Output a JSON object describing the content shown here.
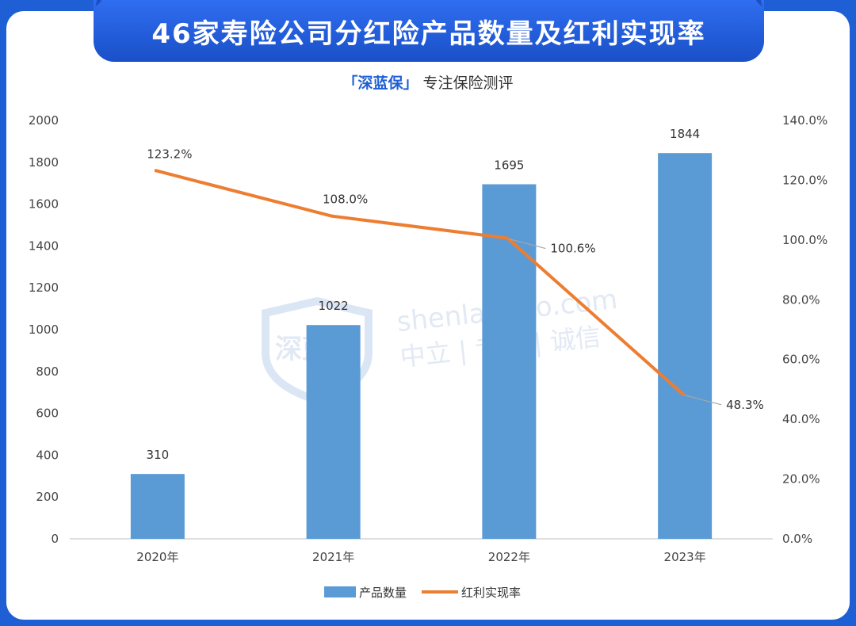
{
  "header": {
    "title": "46家寿险公司分红险产品数量及红利实现率",
    "subtitle_brand": "「深蓝保」",
    "subtitle_rest": "专注保险测评"
  },
  "watermark": {
    "line1": "shenlanbao.com",
    "line2": "中立 | 专业 | 诚信",
    "logo_text": "深蓝保"
  },
  "colors": {
    "bar": "#5b9bd5",
    "line": "#ed7d31",
    "header": "#1f5fd6"
  },
  "chart_data": {
    "type": "bar",
    "categories": [
      "2020年",
      "2021年",
      "2022年",
      "2023年"
    ],
    "series": [
      {
        "name": "产品数量",
        "type": "bar",
        "axis": "left",
        "values": [
          310,
          1022,
          1695,
          1844
        ],
        "labels": [
          "310",
          "1022",
          "1695",
          "1844"
        ]
      },
      {
        "name": "红利实现率",
        "type": "line",
        "axis": "right",
        "values": [
          123.2,
          108.0,
          100.6,
          48.3
        ],
        "labels": [
          "123.2%",
          "108.0%",
          "100.6%",
          "48.3%"
        ]
      }
    ],
    "ylim": [
      0,
      2000
    ],
    "y_ticks": [
      "0",
      "200",
      "400",
      "600",
      "800",
      "1000",
      "1200",
      "1400",
      "1600",
      "1800",
      "2000"
    ],
    "y2lim": [
      0,
      140
    ],
    "y2_ticks": [
      "0.0%",
      "20.0%",
      "40.0%",
      "60.0%",
      "80.0%",
      "100.0%",
      "120.0%",
      "140.0%"
    ],
    "grid": false,
    "legend_position": "bottom-center"
  }
}
